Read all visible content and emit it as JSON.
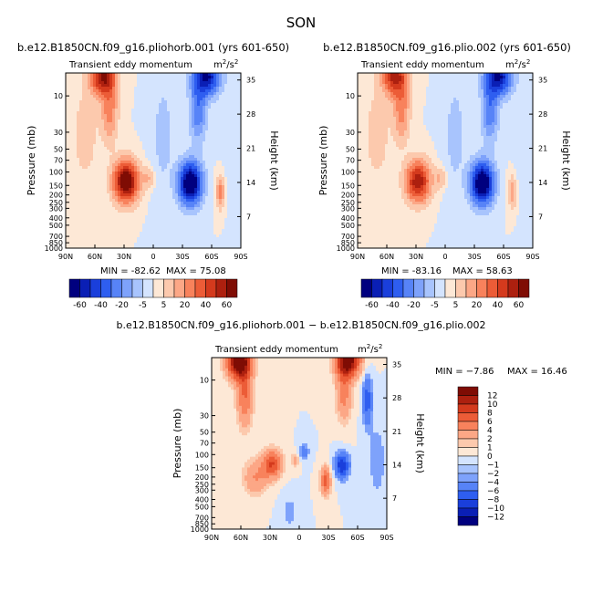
{
  "season": "SON",
  "chart_data": [
    {
      "type": "heatmap",
      "title": "b.e12.B1850CN.f09_g16.pliohorb.001 (yrs 601-650)",
      "subtitle": "Transient eddy momentum",
      "units": "m^2/s^2",
      "xlabel": "",
      "ylabel": "Pressure (mb)",
      "ylabel_right": "Height (km)",
      "x_ticks": [
        "90N",
        "60N",
        "30N",
        "0",
        "30S",
        "60S",
        "90S"
      ],
      "y_ticks": [
        "10",
        "30",
        "50",
        "70",
        "100",
        "150",
        "200",
        "250",
        "300",
        "400",
        "500",
        "700",
        "850",
        "1000"
      ],
      "y_ticks_right": [
        "35",
        "28",
        "21",
        "14",
        "7"
      ],
      "min_label": "MIN = -82.62",
      "max_label": "MAX = 75.08",
      "min": -82.62,
      "max": 75.08,
      "colorbar_levels": [
        "-60",
        "-40",
        "-20",
        "-5",
        "5",
        "20",
        "40",
        "60"
      ],
      "features": [
        {
          "lat": 28,
          "pressure": 200,
          "value": 75,
          "desc": "upper-tropospheric positive maximum (NH)"
        },
        {
          "lat": -38,
          "pressure": 220,
          "value": -82,
          "desc": "upper-tropospheric negative maximum (SH)"
        },
        {
          "lat": 53,
          "pressure": 10,
          "value": 60,
          "desc": "stratospheric positive band"
        },
        {
          "lat": -55,
          "pressure": 10,
          "value": -60,
          "desc": "stratospheric negative band"
        },
        {
          "lat": -68,
          "pressure": 300,
          "value": 25,
          "desc": "positive lobe"
        }
      ]
    },
    {
      "type": "heatmap",
      "title": "b.e12.B1850CN.f09_g16.plio.002 (yrs 601-650)",
      "subtitle": "Transient eddy momentum",
      "units": "m^2/s^2",
      "xlabel": "",
      "ylabel": "Pressure (mb)",
      "ylabel_right": "Height (km)",
      "x_ticks": [
        "90N",
        "60N",
        "30N",
        "0",
        "30S",
        "60S",
        "90S"
      ],
      "y_ticks": [
        "10",
        "30",
        "50",
        "70",
        "100",
        "150",
        "200",
        "250",
        "300",
        "400",
        "500",
        "700",
        "850",
        "1000"
      ],
      "y_ticks_right": [
        "35",
        "28",
        "21",
        "14",
        "7"
      ],
      "min_label": "MIN = -83.16",
      "max_label": "MAX = 58.63",
      "min": -83.16,
      "max": 58.63,
      "colorbar_levels": [
        "-60",
        "-40",
        "-20",
        "-5",
        "5",
        "20",
        "40",
        "60"
      ],
      "features": [
        {
          "lat": 28,
          "pressure": 200,
          "value": 58,
          "desc": "upper-tropospheric positive maximum (NH)"
        },
        {
          "lat": -38,
          "pressure": 220,
          "value": -83,
          "desc": "upper-tropospheric negative maximum (SH)"
        },
        {
          "lat": 53,
          "pressure": 10,
          "value": 55,
          "desc": "stratospheric positive band"
        },
        {
          "lat": -55,
          "pressure": 10,
          "value": -60,
          "desc": "stratospheric negative band"
        },
        {
          "lat": -68,
          "pressure": 300,
          "value": 20,
          "desc": "positive lobe"
        }
      ]
    },
    {
      "type": "heatmap",
      "title": "b.e12.B1850CN.f09_g16.pliohorb.001 − b.e12.B1850CN.f09_g16.plio.002",
      "subtitle": "Transient eddy momentum",
      "units": "m^2/s^2",
      "xlabel": "",
      "ylabel": "Pressure (mb)",
      "ylabel_right": "Height (km)",
      "x_ticks": [
        "90N",
        "60N",
        "30N",
        "0",
        "30S",
        "60S",
        "90S"
      ],
      "y_ticks": [
        "10",
        "30",
        "50",
        "70",
        "100",
        "150",
        "200",
        "250",
        "300",
        "400",
        "500",
        "700",
        "850",
        "1000"
      ],
      "y_ticks_right": [
        "35",
        "28",
        "21",
        "14",
        "7"
      ],
      "min_label": "MIN = −7.86",
      "max_label": "MAX = 16.46",
      "min": -7.86,
      "max": 16.46,
      "colorbar_levels": [
        "12",
        "10",
        "8",
        "6",
        "4",
        "2",
        "1",
        "0",
        "−1",
        "−2",
        "−4",
        "−6",
        "−8",
        "−10",
        "−12"
      ],
      "features": [
        {
          "lat": 60,
          "pressure": 10,
          "value": 16,
          "desc": "stratospheric positive (NH)"
        },
        {
          "lat": -48,
          "pressure": 10,
          "value": 14,
          "desc": "stratospheric positive (SH)"
        },
        {
          "lat": 28,
          "pressure": 160,
          "value": 8,
          "desc": "positive maximum"
        },
        {
          "lat": -28,
          "pressure": 300,
          "value": 7,
          "desc": "positive maximum"
        },
        {
          "lat": -45,
          "pressure": 180,
          "value": -7.9,
          "desc": "negative minimum"
        }
      ]
    }
  ],
  "colors": {
    "neg": [
      "#00007f",
      "#0a1fb5",
      "#1a3fdb",
      "#2e5ef0",
      "#5783f7",
      "#7ea2fb",
      "#a8c4fd",
      "#d4e4fe"
    ],
    "pos": [
      "#fde8d6",
      "#fcc9ad",
      "#fca786",
      "#f8825c",
      "#ec5c37",
      "#d43a1d",
      "#ad200f",
      "#7f0c04"
    ]
  }
}
